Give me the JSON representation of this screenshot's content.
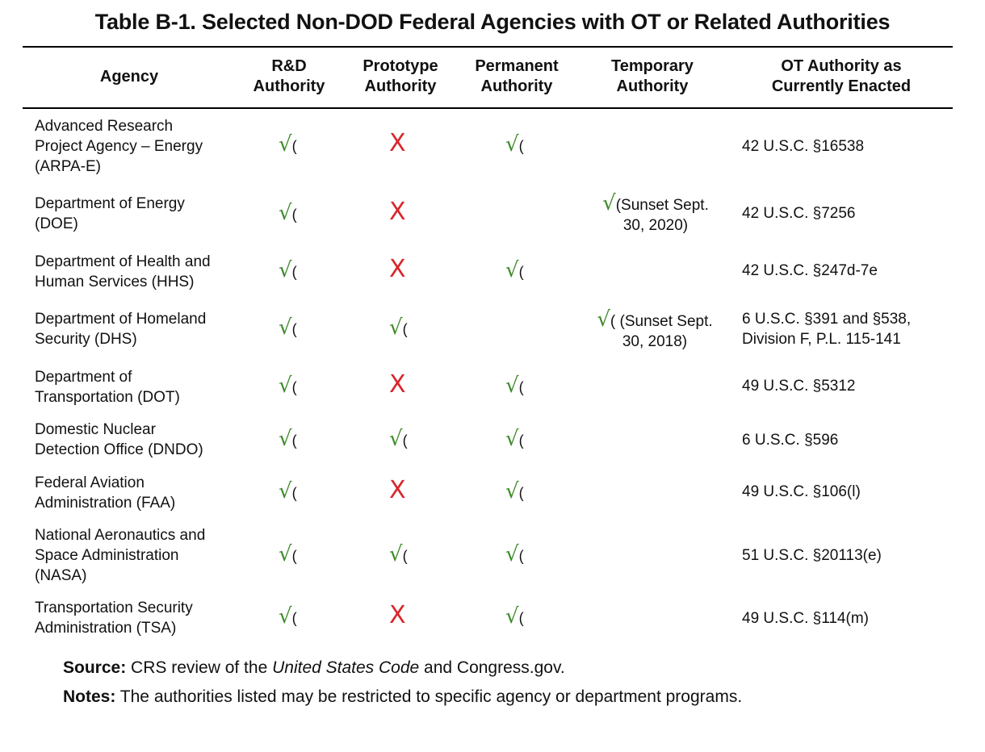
{
  "title": "Table B-1. Selected Non-DOD Federal Agencies with OT or Related Authorities",
  "headers": {
    "agency": [
      "Agency"
    ],
    "rd": [
      "R&D",
      "Authority"
    ],
    "prototype": [
      "Prototype",
      "Authority"
    ],
    "permanent": [
      "Permanent",
      "Authority"
    ],
    "temporary": [
      "Temporary",
      "Authority"
    ],
    "ot": [
      "OT Authority as",
      "Currently Enacted"
    ]
  },
  "symbols": {
    "check": "√",
    "paren": "(",
    "cross": "X"
  },
  "rows": [
    {
      "agency": [
        "Advanced Research",
        "Project Agency – Energy",
        "(ARPA-E)"
      ],
      "citation": [
        "42 U.S.C. §16538"
      ]
    },
    {
      "agency": [
        "Department of Energy",
        "(DOE)"
      ],
      "temporary": [
        "(Sunset Sept.",
        "30, 2020)"
      ],
      "citation": [
        "42 U.S.C. §7256"
      ]
    },
    {
      "agency": [
        "Department of Health and",
        "Human Services (HHS)"
      ],
      "citation": [
        "42 U.S.C. §247d-7e"
      ]
    },
    {
      "agency": [
        "Department of Homeland",
        "Security (DHS)"
      ],
      "temporary": [
        "( (Sunset Sept.",
        "30, 2018)"
      ],
      "citation": [
        "6 U.S.C. §391 and §538,",
        "Division F, P.L. 115-141"
      ]
    },
    {
      "agency": [
        "Department of",
        "Transportation (DOT)"
      ],
      "citation": [
        "49 U.S.C. §5312"
      ]
    },
    {
      "agency": [
        "Domestic Nuclear",
        "Detection Office (DNDO)"
      ],
      "citation": [
        "6 U.S.C. §596"
      ]
    },
    {
      "agency": [
        "Federal Aviation",
        "Administration (FAA)"
      ],
      "citation": [
        "49 U.S.C. §106(l)"
      ]
    },
    {
      "agency": [
        "National Aeronautics and",
        "Space Administration",
        "(NASA)"
      ],
      "citation": [
        "51 U.S.C. §20113(e)"
      ]
    },
    {
      "agency": [
        "Transportation Security",
        "Administration (TSA)"
      ],
      "citation": [
        "49 U.S.C. §114(m)"
      ]
    }
  ],
  "source": {
    "label": "Source:",
    "text1": " CRS review of the ",
    "italic": "United States Code",
    "text2": " and Congress.gov."
  },
  "notes": {
    "label": "Notes:",
    "text": " The authorities listed may be restricted to specific agency or department programs."
  }
}
